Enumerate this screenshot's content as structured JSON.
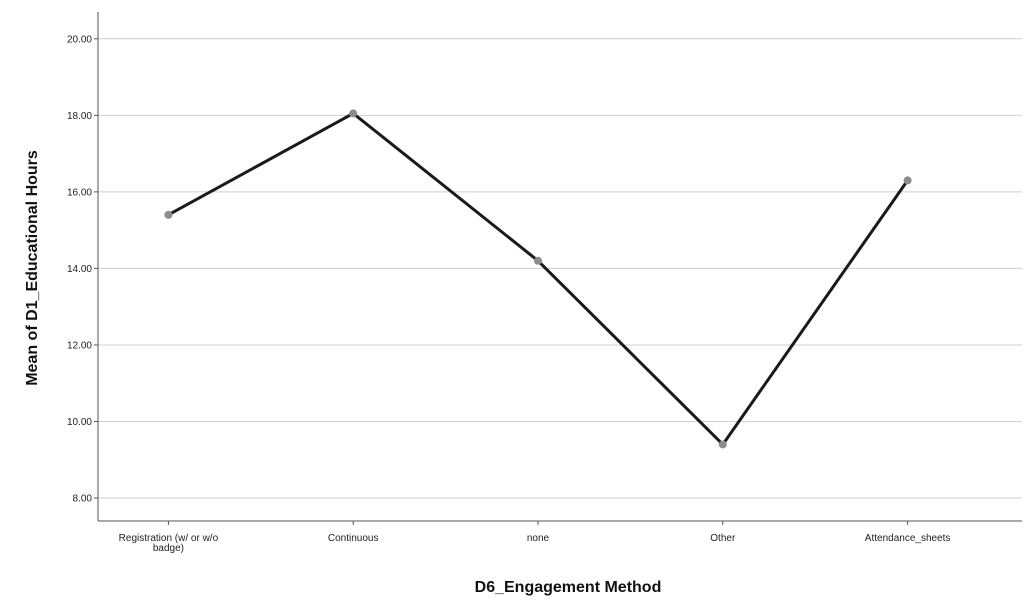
{
  "chart_data": {
    "type": "line",
    "title": "",
    "xlabel": "D6_Engagement Method",
    "ylabel": "Mean of D1_Educational Hours",
    "categories": [
      "Registration (w/ or w/o badge)",
      "Continuous",
      "none",
      "Other",
      "Attendance_sheets"
    ],
    "category_lines": [
      [
        "Registration (w/ or w/o",
        "badge)"
      ],
      [
        "Continuous"
      ],
      [
        "none"
      ],
      [
        "Other"
      ],
      [
        "Attendance_sheets"
      ]
    ],
    "series": [
      {
        "values": [
          15.4,
          18.05,
          14.2,
          9.4,
          16.3
        ]
      }
    ],
    "ylim": [
      7.4,
      20.7
    ],
    "yticks": [
      8,
      10,
      12,
      14,
      16,
      18,
      20
    ],
    "ytick_labels": [
      "8.00",
      "10.00",
      "12.00",
      "14.00",
      "16.00",
      "18.00",
      "20.00"
    ],
    "grid": true,
    "legend": false,
    "colors": {
      "line": "#1a1a1a",
      "point": "#8c8c8c",
      "grid": "#cfcfcf",
      "axis": "#555555"
    }
  }
}
